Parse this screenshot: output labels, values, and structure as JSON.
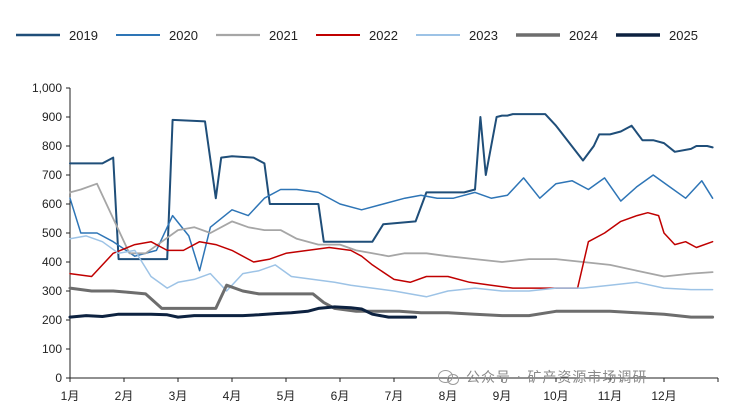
{
  "chart_data": {
    "type": "line",
    "x_ticks": [
      "1月",
      "2月",
      "3月",
      "4月",
      "5月",
      "6月",
      "7月",
      "8月",
      "9月",
      "10月",
      "11月",
      "12月"
    ],
    "ylim": [
      0,
      1000
    ],
    "y_ticks": [
      "0",
      "100",
      "200",
      "300",
      "400",
      "500",
      "600",
      "700",
      "800",
      "900",
      "1,000"
    ],
    "legend_position": "top",
    "grid": false,
    "series": [
      {
        "name": "2019",
        "color": "#1f4e79",
        "width": 2,
        "x": [
          1,
          1.6,
          1.8,
          1.9,
          2.8,
          2.9,
          3.5,
          3.7,
          3.8,
          4.0,
          4.4,
          4.6,
          4.7,
          5.6,
          5.7,
          6.6,
          6.8,
          7.4,
          7.6,
          8.3,
          8.5,
          8.6,
          8.7,
          8.9,
          9.0,
          9.1,
          9.2,
          9.6,
          9.8,
          10.0,
          10.5,
          10.7,
          10.8,
          11.0,
          11.2,
          11.4,
          11.6,
          11.8,
          12.0,
          12.2,
          12.5,
          12.6,
          12.8,
          12.9
        ],
        "y": [
          740,
          740,
          760,
          410,
          410,
          890,
          885,
          620,
          760,
          765,
          760,
          740,
          600,
          600,
          470,
          470,
          530,
          540,
          640,
          640,
          650,
          900,
          700,
          900,
          905,
          905,
          910,
          910,
          910,
          870,
          750,
          800,
          840,
          840,
          850,
          870,
          820,
          820,
          810,
          780,
          790,
          800,
          800,
          795
        ]
      },
      {
        "name": "2020",
        "color": "#2e75b6",
        "width": 1.5,
        "x": [
          1,
          1.2,
          1.5,
          1.8,
          2.2,
          2.6,
          2.9,
          3.2,
          3.4,
          3.6,
          4.0,
          4.3,
          4.6,
          4.9,
          5.2,
          5.6,
          6.0,
          6.4,
          6.8,
          7.2,
          7.5,
          7.8,
          8.1,
          8.5,
          8.8,
          9.1,
          9.4,
          9.7,
          10.0,
          10.3,
          10.6,
          10.9,
          11.2,
          11.5,
          11.8,
          12.1,
          12.4,
          12.7,
          12.9
        ],
        "y": [
          620,
          500,
          500,
          470,
          420,
          440,
          560,
          490,
          370,
          520,
          580,
          560,
          620,
          650,
          650,
          640,
          600,
          580,
          600,
          620,
          630,
          620,
          620,
          640,
          620,
          630,
          690,
          620,
          670,
          680,
          650,
          690,
          610,
          660,
          700,
          660,
          620,
          680,
          620
        ]
      },
      {
        "name": "2021",
        "color": "#a6a6a6",
        "width": 1.8,
        "x": [
          1,
          1.2,
          1.5,
          1.8,
          2.1,
          2.4,
          2.7,
          3.0,
          3.3,
          3.6,
          4.0,
          4.3,
          4.6,
          4.9,
          5.2,
          5.6,
          6.0,
          6.3,
          6.6,
          6.9,
          7.2,
          7.6,
          8.0,
          8.5,
          9.0,
          9.5,
          10.0,
          10.5,
          11.0,
          11.5,
          12.0,
          12.5,
          12.9
        ],
        "y": [
          640,
          650,
          670,
          550,
          430,
          430,
          470,
          510,
          520,
          500,
          540,
          520,
          510,
          510,
          480,
          460,
          460,
          440,
          430,
          420,
          430,
          430,
          420,
          410,
          400,
          410,
          410,
          400,
          390,
          370,
          350,
          360,
          365
        ]
      },
      {
        "name": "2022",
        "color": "#c00000",
        "width": 1.5,
        "x": [
          1,
          1.4,
          1.8,
          2.2,
          2.5,
          2.8,
          3.1,
          3.4,
          3.7,
          4.0,
          4.4,
          4.7,
          5.0,
          5.4,
          5.8,
          6.2,
          6.4,
          6.6,
          7.0,
          7.3,
          7.6,
          8.0,
          8.4,
          8.8,
          9.2,
          9.6,
          10.0,
          10.4,
          10.6,
          10.9,
          11.2,
          11.5,
          11.7,
          11.9,
          12.0,
          12.2,
          12.4,
          12.6,
          12.9
        ],
        "y": [
          360,
          350,
          430,
          460,
          470,
          440,
          440,
          470,
          460,
          440,
          400,
          410,
          430,
          440,
          450,
          440,
          420,
          390,
          340,
          330,
          350,
          350,
          330,
          320,
          310,
          310,
          310,
          310,
          470,
          500,
          540,
          560,
          570,
          560,
          500,
          460,
          470,
          450,
          470
        ]
      },
      {
        "name": "2023",
        "color": "#9dc3e6",
        "width": 1.5,
        "x": [
          1,
          1.3,
          1.6,
          1.9,
          2.2,
          2.5,
          2.8,
          3.0,
          3.3,
          3.6,
          3.9,
          4.2,
          4.5,
          4.8,
          5.1,
          5.5,
          5.9,
          6.2,
          6.6,
          7.0,
          7.3,
          7.6,
          8.0,
          8.5,
          9.0,
          9.5,
          10.0,
          10.5,
          11.0,
          11.5,
          12.0,
          12.5,
          12.9
        ],
        "y": [
          480,
          490,
          470,
          430,
          440,
          350,
          310,
          330,
          340,
          360,
          300,
          360,
          370,
          390,
          350,
          340,
          330,
          320,
          310,
          300,
          290,
          280,
          300,
          310,
          300,
          300,
          310,
          310,
          320,
          330,
          310,
          305,
          305
        ]
      },
      {
        "name": "2024",
        "color": "#6d6d6d",
        "width": 3,
        "x": [
          1,
          1.4,
          1.8,
          2.1,
          2.4,
          2.7,
          3.0,
          3.4,
          3.7,
          3.9,
          4.2,
          4.5,
          4.8,
          5.2,
          5.5,
          5.7,
          5.9,
          6.3,
          6.7,
          7.1,
          7.5,
          8.0,
          8.5,
          9.0,
          9.5,
          10.0,
          10.5,
          11.0,
          11.5,
          12.0,
          12.5,
          12.9
        ],
        "y": [
          310,
          300,
          300,
          295,
          290,
          240,
          240,
          240,
          240,
          320,
          300,
          290,
          290,
          290,
          290,
          260,
          240,
          230,
          230,
          230,
          225,
          225,
          220,
          215,
          215,
          230,
          230,
          230,
          225,
          220,
          210,
          210
        ]
      },
      {
        "name": "2025",
        "color": "#0d2240",
        "width": 3,
        "x": [
          1,
          1.3,
          1.6,
          1.9,
          2.2,
          2.5,
          2.8,
          3.0,
          3.3,
          3.6,
          3.9,
          4.2,
          4.5,
          4.8,
          5.1,
          5.4,
          5.6,
          5.9,
          6.2,
          6.4,
          6.6,
          6.9,
          7.2,
          7.4
        ],
        "y": [
          210,
          215,
          212,
          220,
          220,
          220,
          218,
          210,
          215,
          215,
          215,
          215,
          218,
          222,
          225,
          230,
          240,
          245,
          242,
          238,
          220,
          210,
          210,
          210
        ]
      }
    ]
  },
  "watermark": "公众号 · 矿产资源市场调研"
}
